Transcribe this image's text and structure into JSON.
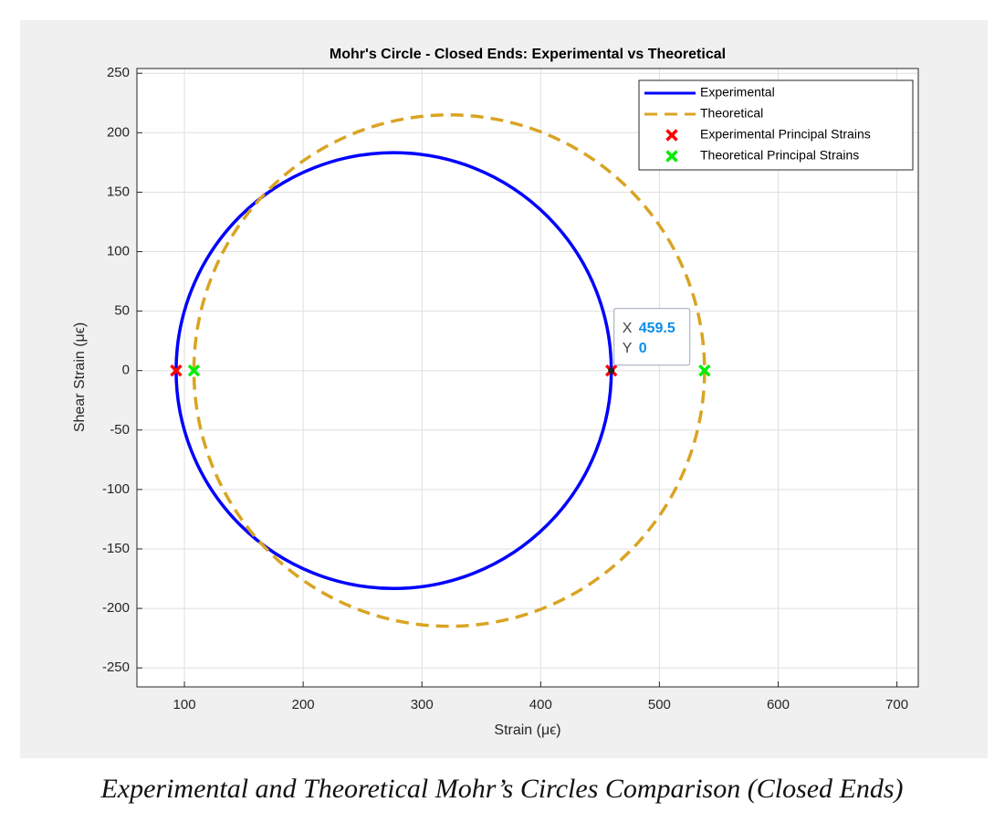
{
  "chart_data": {
    "type": "line",
    "title": "Mohr's Circle - Closed Ends: Experimental vs Theoretical",
    "x_label": "Strain (μϵ)",
    "y_label": "Shear Strain (μϵ)",
    "xlim": [
      60,
      718
    ],
    "ylim": [
      -266,
      254
    ],
    "xticks": [
      100,
      200,
      300,
      400,
      500,
      600,
      700
    ],
    "yticks": [
      -250,
      -200,
      -150,
      -100,
      -50,
      0,
      50,
      100,
      150,
      200,
      250
    ],
    "grid": true,
    "legend": "top-right",
    "series": [
      {
        "name": "Experimental",
        "color": "#0000ff",
        "style": "solid-circle",
        "center": 276.25,
        "radius": 183.25
      },
      {
        "name": "Theoretical",
        "color": "#d9a423",
        "style": "dashed-circle",
        "center": 323,
        "radius": 215
      },
      {
        "name": "Experimental Principal Strains",
        "color": "#ff0000",
        "style": "x-marker",
        "x": [
          93,
          459.5
        ],
        "y": [
          0,
          0
        ]
      },
      {
        "name": "Theoretical Principal Strains",
        "color": "#00ee00",
        "style": "x-marker",
        "x": [
          108,
          538
        ],
        "y": [
          0,
          0
        ]
      }
    ],
    "datatip": {
      "x_name": "X",
      "x": 459.5,
      "y_name": "Y",
      "y": 0
    },
    "caption": "Experimental and Theoretical Mohr’s Circles Comparison (Closed Ends)"
  }
}
